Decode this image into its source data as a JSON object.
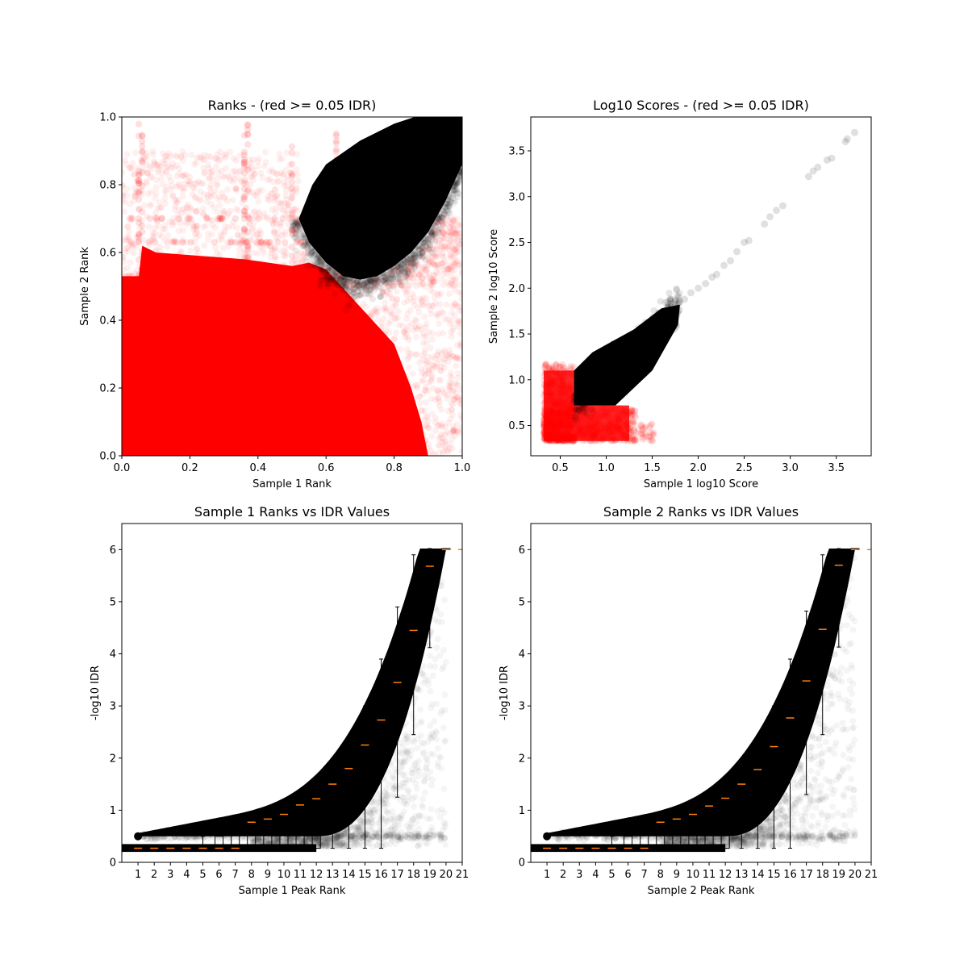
{
  "chart_data": [
    {
      "id": "ranks",
      "type": "scatter",
      "title": "Ranks - (red >= 0.05 IDR)",
      "xlabel": "Sample 1 Rank",
      "ylabel": "Sample 2 Rank",
      "xlim": [
        0,
        1
      ],
      "ylim": [
        0,
        1
      ],
      "xticks": [
        "0.0",
        "0.2",
        "0.4",
        "0.6",
        "0.8",
        "1.0"
      ],
      "yticks": [
        "0.0",
        "0.2",
        "0.4",
        "0.6",
        "0.8",
        "1.0"
      ],
      "grid": false,
      "colors": {
        "pass": "#000000",
        "fail": "#ff0000"
      },
      "regions": {
        "black_lower_boundary": [
          {
            "x": 0.52,
            "y": 0.7
          },
          {
            "x": 0.55,
            "y": 0.63
          },
          {
            "x": 0.6,
            "y": 0.57
          },
          {
            "x": 0.65,
            "y": 0.53
          },
          {
            "x": 0.7,
            "y": 0.52
          },
          {
            "x": 0.75,
            "y": 0.53
          },
          {
            "x": 0.8,
            "y": 0.56
          },
          {
            "x": 0.85,
            "y": 0.6
          },
          {
            "x": 0.9,
            "y": 0.66
          },
          {
            "x": 0.95,
            "y": 0.75
          },
          {
            "x": 1.0,
            "y": 0.86
          }
        ],
        "black_upper_boundary": [
          {
            "x": 0.52,
            "y": 0.7
          },
          {
            "x": 0.56,
            "y": 0.8
          },
          {
            "x": 0.6,
            "y": 0.86
          },
          {
            "x": 0.7,
            "y": 0.93
          },
          {
            "x": 0.8,
            "y": 0.98
          },
          {
            "x": 0.86,
            "y": 1.0
          },
          {
            "x": 1.0,
            "y": 1.0
          }
        ]
      }
    },
    {
      "id": "scores",
      "type": "scatter",
      "title": "Log10 Scores - (red >= 0.05 IDR)",
      "xlabel": "Sample 1 log10 Score",
      "ylabel": "Sample 2 log10 Score",
      "xlim": [
        0.18,
        3.88
      ],
      "ylim": [
        0.17,
        3.87
      ],
      "xticks": [
        "0.5",
        "1.0",
        "1.5",
        "2.0",
        "2.5",
        "3.0",
        "3.5"
      ],
      "yticks": [
        "0.5",
        "1.0",
        "1.5",
        "2.0",
        "2.5",
        "3.0",
        "3.5"
      ],
      "grid": false,
      "colors": {
        "pass": "#000000",
        "fail": "#ff0000"
      },
      "outliers": [
        {
          "x": 1.8,
          "y": 1.85
        },
        {
          "x": 1.85,
          "y": 1.88
        },
        {
          "x": 1.92,
          "y": 1.95
        },
        {
          "x": 2.0,
          "y": 2.0
        },
        {
          "x": 2.08,
          "y": 2.05
        },
        {
          "x": 2.15,
          "y": 2.12
        },
        {
          "x": 2.2,
          "y": 2.15
        },
        {
          "x": 2.28,
          "y": 2.25
        },
        {
          "x": 2.35,
          "y": 2.3
        },
        {
          "x": 2.42,
          "y": 2.4
        },
        {
          "x": 2.5,
          "y": 2.5
        },
        {
          "x": 2.55,
          "y": 2.52
        },
        {
          "x": 2.72,
          "y": 2.7
        },
        {
          "x": 2.78,
          "y": 2.78
        },
        {
          "x": 2.85,
          "y": 2.85
        },
        {
          "x": 2.92,
          "y": 2.9
        },
        {
          "x": 3.2,
          "y": 3.22
        },
        {
          "x": 3.25,
          "y": 3.28
        },
        {
          "x": 3.3,
          "y": 3.32
        },
        {
          "x": 3.4,
          "y": 3.4
        },
        {
          "x": 3.45,
          "y": 3.42
        },
        {
          "x": 3.6,
          "y": 3.6
        },
        {
          "x": 3.62,
          "y": 3.63
        },
        {
          "x": 3.7,
          "y": 3.7
        }
      ]
    },
    {
      "id": "s1idr",
      "type": "scatter",
      "title": "Sample 1 Ranks vs IDR Values",
      "xlabel": "Sample 1 Peak Rank",
      "ylabel": "-log10 IDR",
      "xlim": [
        0,
        21
      ],
      "ylim": [
        0,
        6.5
      ],
      "xticks": [
        "1",
        "2",
        "3",
        "4",
        "5",
        "6",
        "7",
        "8",
        "9",
        "10",
        "11",
        "12",
        "13",
        "14",
        "15",
        "16",
        "17",
        "18",
        "19",
        "20",
        "21"
      ],
      "yticks": [
        "0",
        "1",
        "2",
        "3",
        "4",
        "5",
        "6"
      ],
      "grid": false,
      "colors": {
        "points": "#000000",
        "median": "#ff7f0e"
      },
      "boxplot": {
        "positions": [
          1,
          2,
          3,
          4,
          5,
          6,
          7,
          8,
          9,
          10,
          11,
          12,
          13,
          14,
          15,
          16,
          17,
          18,
          19,
          20
        ],
        "median": [
          0.27,
          0.27,
          0.27,
          0.27,
          0.27,
          0.27,
          0.27,
          0.77,
          0.83,
          0.92,
          1.1,
          1.22,
          1.5,
          1.8,
          2.25,
          2.73,
          3.45,
          4.45,
          5.68,
          6.0
        ],
        "q1": [
          0.27,
          0.27,
          0.27,
          0.27,
          0.27,
          0.27,
          0.27,
          0.27,
          0.27,
          0.27,
          0.27,
          0.27,
          0.82,
          1.1,
          1.5,
          2.0,
          2.83,
          3.9,
          5.22,
          6.0
        ],
        "q3": [
          0.27,
          0.27,
          0.27,
          0.27,
          0.27,
          0.5,
          0.55,
          0.6,
          0.65,
          0.7,
          0.8,
          0.9,
          1.6,
          1.95,
          2.35,
          2.9,
          3.7,
          4.8,
          5.95,
          6.02
        ],
        "whislo": [
          0.27,
          0.27,
          0.27,
          0.27,
          0.27,
          0.27,
          0.27,
          0.27,
          0.27,
          0.27,
          0.27,
          0.27,
          0.27,
          0.27,
          0.27,
          0.27,
          1.25,
          2.45,
          4.12,
          6.0
        ],
        "whishi": [
          0.27,
          0.27,
          0.27,
          0.27,
          0.5,
          0.55,
          0.6,
          0.65,
          0.7,
          0.75,
          0.85,
          1.0,
          1.65,
          2.2,
          3.0,
          3.9,
          4.9,
          5.9,
          6.02,
          6.02
        ]
      }
    },
    {
      "id": "s2idr",
      "type": "scatter",
      "title": "Sample 2 Ranks vs IDR Values",
      "xlabel": "Sample 2 Peak Rank",
      "ylabel": "-log10 IDR",
      "xlim": [
        0,
        21
      ],
      "ylim": [
        0,
        6.5
      ],
      "xticks": [
        "1",
        "2",
        "3",
        "4",
        "5",
        "6",
        "7",
        "8",
        "9",
        "10",
        "11",
        "12",
        "13",
        "14",
        "15",
        "16",
        "17",
        "18",
        "19",
        "20",
        "21"
      ],
      "yticks": [
        "0",
        "1",
        "2",
        "3",
        "4",
        "5",
        "6"
      ],
      "grid": false,
      "colors": {
        "points": "#000000",
        "median": "#ff7f0e"
      },
      "boxplot": {
        "positions": [
          1,
          2,
          3,
          4,
          5,
          6,
          7,
          8,
          9,
          10,
          11,
          12,
          13,
          14,
          15,
          16,
          17,
          18,
          19,
          20
        ],
        "median": [
          0.27,
          0.27,
          0.27,
          0.27,
          0.27,
          0.27,
          0.27,
          0.77,
          0.83,
          0.92,
          1.08,
          1.23,
          1.5,
          1.78,
          2.22,
          2.77,
          3.48,
          4.47,
          5.7,
          6.0
        ],
        "q1": [
          0.27,
          0.27,
          0.27,
          0.27,
          0.27,
          0.27,
          0.27,
          0.27,
          0.27,
          0.27,
          0.27,
          0.27,
          0.82,
          1.05,
          1.48,
          2.05,
          2.88,
          3.95,
          5.25,
          6.0
        ],
        "q3": [
          0.27,
          0.27,
          0.27,
          0.27,
          0.27,
          0.5,
          0.55,
          0.6,
          0.65,
          0.7,
          0.8,
          0.9,
          1.6,
          1.95,
          2.35,
          2.9,
          3.7,
          4.8,
          5.95,
          6.02
        ],
        "whislo": [
          0.27,
          0.27,
          0.27,
          0.27,
          0.27,
          0.27,
          0.27,
          0.27,
          0.27,
          0.27,
          0.27,
          0.27,
          0.27,
          0.27,
          0.27,
          0.27,
          1.3,
          2.45,
          4.13,
          6.0
        ],
        "whishi": [
          0.27,
          0.27,
          0.27,
          0.27,
          0.5,
          0.55,
          0.6,
          0.65,
          0.7,
          0.75,
          0.85,
          1.0,
          1.65,
          2.2,
          3.0,
          3.9,
          4.82,
          5.9,
          6.02,
          6.02
        ]
      }
    }
  ]
}
